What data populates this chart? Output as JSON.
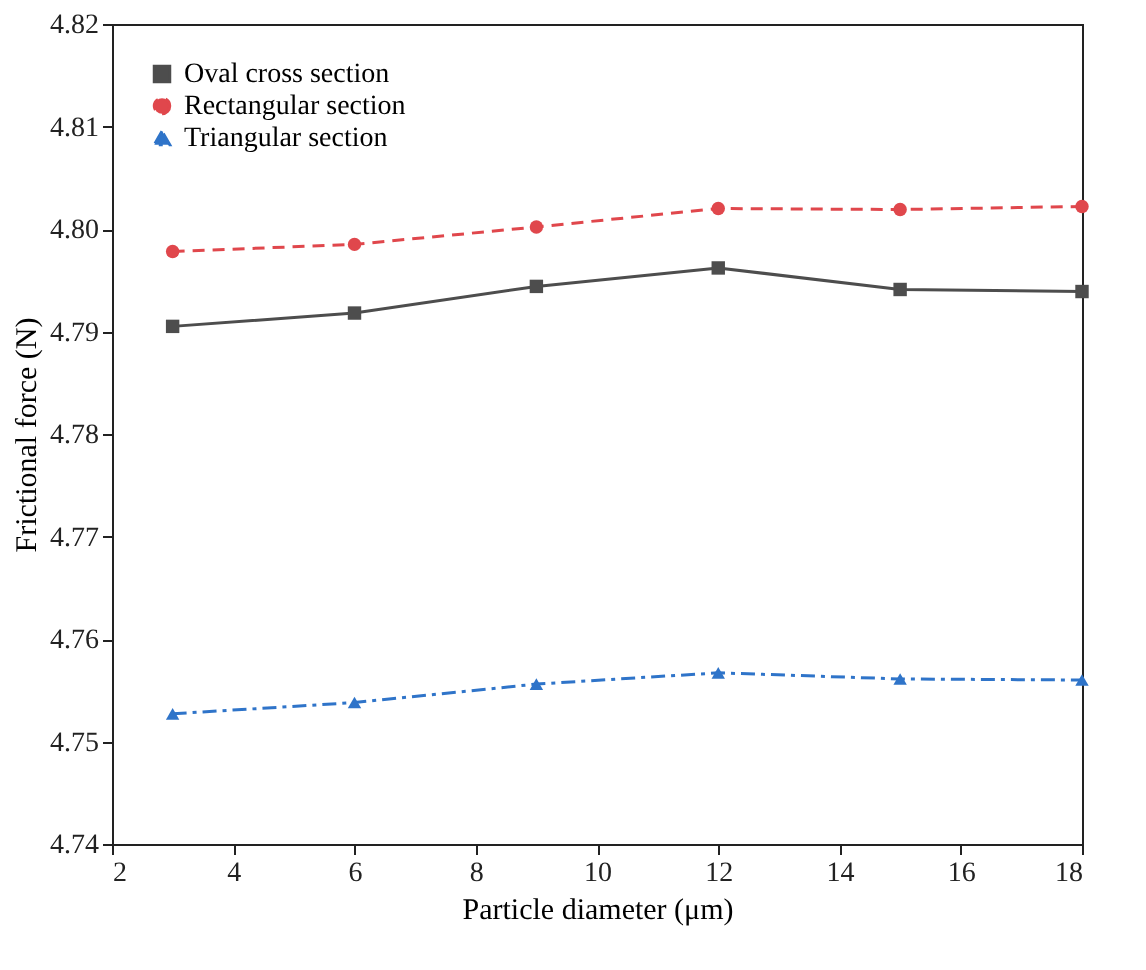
{
  "chart_data": {
    "type": "line",
    "xlabel": "Particle diameter (μm)",
    "ylabel": "Frictional force (N)",
    "x": [
      3,
      6,
      9,
      12,
      15,
      18
    ],
    "series": [
      {
        "name": "Oval cross section",
        "color": "#4d4d4d",
        "marker": "square",
        "line_style": "solid",
        "values": [
          4.7905,
          4.7918,
          4.7944,
          4.7962,
          4.7941,
          4.7939
        ]
      },
      {
        "name": "Rectangular section",
        "color": "#e0474c",
        "marker": "circle",
        "line_style": "dashed",
        "values": [
          4.7978,
          4.7985,
          4.8002,
          4.802,
          4.8019,
          4.8022
        ]
      },
      {
        "name": "Triangular section",
        "color": "#2f74c9",
        "marker": "triangle",
        "line_style": "dashdot",
        "values": [
          4.7527,
          4.7538,
          4.7556,
          4.7567,
          4.7561,
          4.756
        ]
      }
    ],
    "xlim": [
      2,
      18
    ],
    "xticks": [
      2,
      4,
      6,
      8,
      10,
      12,
      14,
      16,
      18
    ],
    "ylim": [
      4.74,
      4.82
    ],
    "yticks": [
      4.74,
      4.75,
      4.76,
      4.77,
      4.78,
      4.79,
      {
        "value": 4.8,
        "label": "4.80"
      },
      4.81,
      4.82
    ],
    "grid": false,
    "legend": "top left"
  }
}
